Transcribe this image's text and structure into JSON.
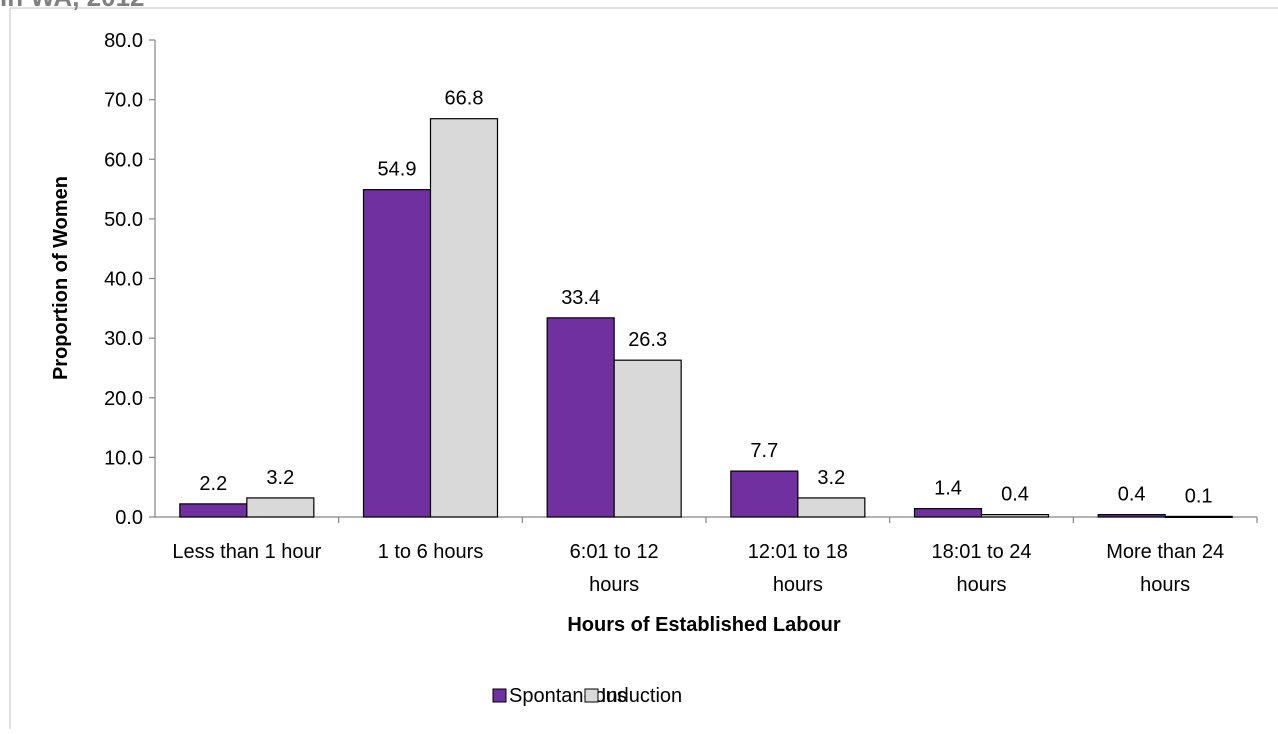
{
  "header": {
    "clipped_title": "in WA, 2012"
  },
  "chart_data": {
    "type": "bar",
    "categories": [
      [
        "Less than 1 hour"
      ],
      [
        "1 to 6 hours"
      ],
      [
        "6:01  to 12",
        "hours"
      ],
      [
        "12:01 to 18",
        "hours"
      ],
      [
        "18:01 to 24",
        "hours"
      ],
      [
        "More than 24",
        "hours"
      ]
    ],
    "series": [
      {
        "name": "Spontaneous",
        "color": "#7030A0",
        "values": [
          2.2,
          54.9,
          33.4,
          7.7,
          1.4,
          0.4
        ]
      },
      {
        "name": "Induction",
        "color": "#D9D9D9",
        "values": [
          3.2,
          66.8,
          26.3,
          3.2,
          0.4,
          0.1
        ]
      }
    ],
    "xlabel": "Hours of Established Labour",
    "ylabel": "Proportion of Women",
    "ylim": [
      0,
      80
    ],
    "yticks": [
      "0.0",
      "10.0",
      "20.0",
      "30.0",
      "40.0",
      "50.0",
      "60.0",
      "70.0",
      "80.0"
    ],
    "grid": false,
    "legend": "bottom"
  }
}
